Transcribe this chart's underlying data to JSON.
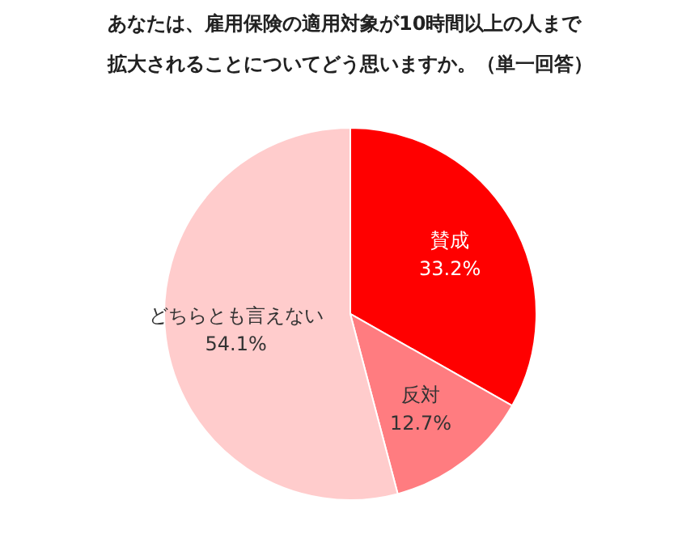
{
  "chart_data": {
    "type": "pie",
    "title": "あなたは、雇用保険の適用対象が10時間以上の人まで拡大されることについてどう思いますか。（単一回答）",
    "categories": [
      "賛成",
      "反対",
      "どちらとも言えない"
    ],
    "values": [
      33.2,
      12.7,
      54.1
    ],
    "value_labels": [
      "33.2%",
      "12.7%",
      "54.1%"
    ],
    "colors": [
      "#ff0000",
      "#ff7c80",
      "#ffcccc"
    ],
    "legend": false
  }
}
